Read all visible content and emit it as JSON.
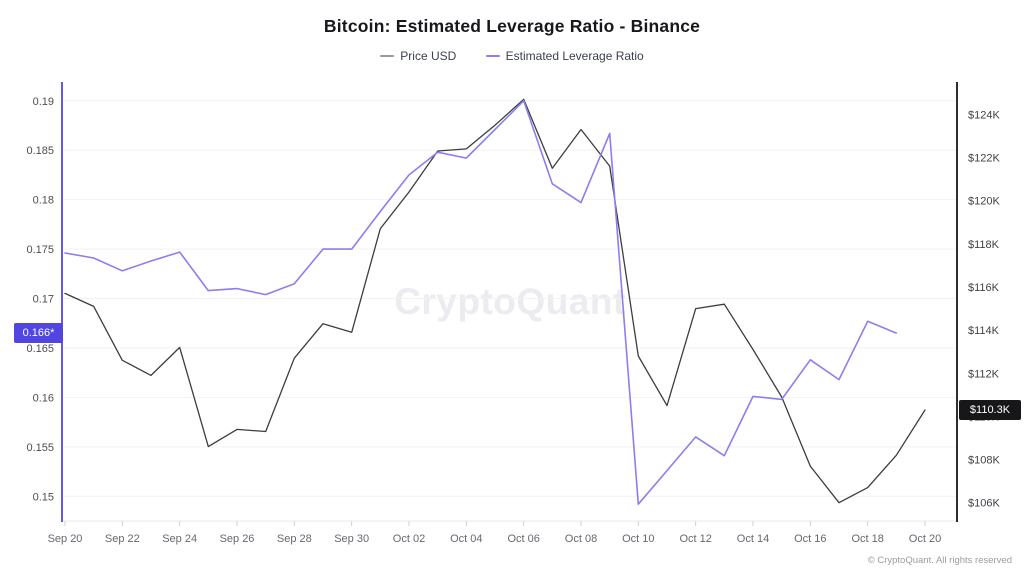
{
  "footer": {
    "copyright": "© CryptoQuant. All rights reserved"
  },
  "chart_data": {
    "type": "line",
    "title": "Bitcoin: Estimated Leverage Ratio - Binance",
    "watermark": "CryptoQuant",
    "legend_position": "top-center",
    "grid": "horizontal-faint",
    "x_dates": [
      "Sep 20",
      "Sep 21",
      "Sep 22",
      "Sep 23",
      "Sep 24",
      "Sep 25",
      "Sep 26",
      "Sep 27",
      "Sep 28",
      "Sep 29",
      "Sep 30",
      "Oct 01",
      "Oct 02",
      "Oct 03",
      "Oct 04",
      "Oct 05",
      "Oct 06",
      "Oct 07",
      "Oct 08",
      "Oct 09",
      "Oct 10",
      "Oct 11",
      "Oct 12",
      "Oct 13",
      "Oct 14",
      "Oct 15",
      "Oct 16",
      "Oct 17",
      "Oct 18",
      "Oct 19",
      "Oct 20"
    ],
    "x_tick_labels": [
      "Sep 20",
      "Sep 22",
      "Sep 24",
      "Sep 26",
      "Sep 28",
      "Sep 30",
      "Oct 02",
      "Oct 04",
      "Oct 06",
      "Oct 08",
      "Oct 10",
      "Oct 12",
      "Oct 14",
      "Oct 16",
      "Oct 18",
      "Oct 20"
    ],
    "x_tick_indices": [
      0,
      2,
      4,
      6,
      8,
      10,
      12,
      14,
      16,
      18,
      20,
      22,
      24,
      26,
      28,
      30
    ],
    "series": [
      {
        "name": "Price USD",
        "axis": "right",
        "unit": "USD thousands",
        "color": "#3d3d3d",
        "legend_swatch_color": "#98989e",
        "values": [
          115.7,
          115.1,
          112.6,
          111.9,
          113.2,
          108.6,
          109.4,
          109.3,
          112.7,
          114.3,
          113.9,
          118.7,
          120.4,
          122.3,
          122.4,
          123.5,
          124.7,
          121.5,
          123.3,
          121.6,
          112.8,
          110.5,
          115.0,
          115.2,
          113.1,
          110.9,
          107.7,
          106.0,
          106.7,
          108.2,
          110.3
        ]
      },
      {
        "name": "Estimated Leverage Ratio",
        "axis": "left",
        "unit": "ratio",
        "color": "#8a7ff0",
        "legend_swatch_color": "#8a7ff0",
        "values": [
          0.1746,
          0.1741,
          0.1728,
          0.1738,
          0.1747,
          0.1708,
          0.171,
          0.1704,
          0.1715,
          0.175,
          0.175,
          0.1788,
          0.1825,
          0.1848,
          0.1842,
          0.1871,
          0.19,
          0.1816,
          0.1797,
          0.1867,
          0.1492,
          0.1526,
          0.156,
          0.1541,
          0.1601,
          0.1598,
          0.1638,
          0.1618,
          0.1677,
          0.1665,
          null
        ]
      }
    ],
    "left_axis": {
      "label": "Estimated Leverage Ratio",
      "min": 0.1476,
      "max": 0.1919,
      "ticks": [
        {
          "label": "0.19",
          "value": 0.19
        },
        {
          "label": "0.185",
          "value": 0.185
        },
        {
          "label": "0.18",
          "value": 0.18
        },
        {
          "label": "0.175",
          "value": 0.175
        },
        {
          "label": "0.17",
          "value": 0.17
        },
        {
          "label": "0.165",
          "value": 0.165
        },
        {
          "label": "0.16",
          "value": 0.16
        },
        {
          "label": "0.155",
          "value": 0.155
        },
        {
          "label": "0.15",
          "value": 0.15
        }
      ],
      "current_label": "0.166*",
      "current_value": 0.1665,
      "axis_line_color": "#6458e8",
      "badge_bg": "#5246e0"
    },
    "right_axis": {
      "label": "Price USD",
      "min": 105.2,
      "max": 125.5,
      "ticks": [
        {
          "label": "$124K",
          "value": 124
        },
        {
          "label": "$122K",
          "value": 122
        },
        {
          "label": "$120K",
          "value": 120
        },
        {
          "label": "$118K",
          "value": 118
        },
        {
          "label": "$116K",
          "value": 116
        },
        {
          "label": "$114K",
          "value": 114
        },
        {
          "label": "$112K",
          "value": 112
        },
        {
          "label": "$110K",
          "value": 110
        },
        {
          "label": "$108K",
          "value": 108
        },
        {
          "label": "$106K",
          "value": 106
        }
      ],
      "current_label": "$110.3K",
      "current_value": 110.3,
      "axis_line_color": "#2f2f33",
      "badge_bg": "#17171a"
    }
  }
}
